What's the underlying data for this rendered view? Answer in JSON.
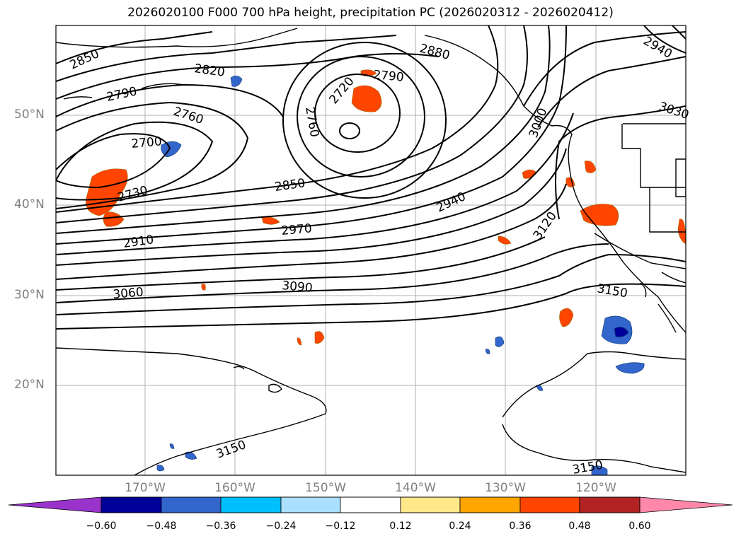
{
  "title": "2026020100 F000 700 hPa height, precipitation PC (2026020312 - 2026020412)",
  "lat_labels": [
    "50°N",
    "40°N",
    "30°N",
    "20°N"
  ],
  "lon_labels": [
    "170°W",
    "160°W",
    "150°W",
    "140°W",
    "130°W",
    "120°W"
  ],
  "contour_labels": [
    "2850",
    "2820",
    "2880",
    "2940",
    "2790",
    "2790",
    "2720",
    "2760",
    "2760",
    "3030",
    "3000",
    "2700",
    "2850",
    "2730",
    "2940",
    "3120",
    "2970",
    "2910",
    "3150",
    "3090",
    "3060",
    "3150",
    "3150"
  ],
  "colorbar": {
    "ticks": [
      "−0.60",
      "−0.48",
      "−0.36",
      "−0.24",
      "−0.12",
      "0.12",
      "0.24",
      "0.36",
      "0.48",
      "0.60"
    ],
    "colors": [
      "#9933cc",
      "#000099",
      "#3366cc",
      "#00bfff",
      "#aadfff",
      "#ffffff",
      "#ffe88a",
      "#ffa500",
      "#ff4500",
      "#b22222",
      "#ff88aa"
    ]
  }
}
